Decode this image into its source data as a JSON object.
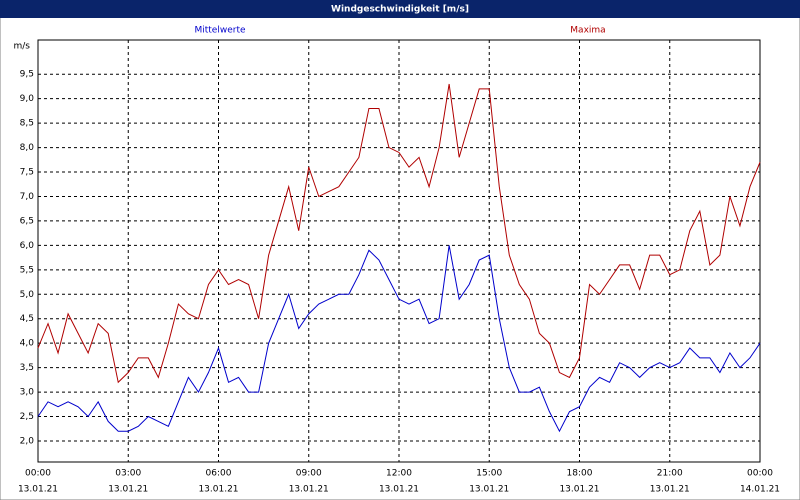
{
  "chart_data": {
    "type": "line",
    "title": "Windgeschwindigkeit [m/s]",
    "y_unit": "m/s",
    "x": [
      0,
      20,
      40,
      60,
      80,
      100,
      120,
      140,
      160,
      180,
      200,
      220,
      240,
      260,
      280,
      300,
      320,
      340,
      360,
      380,
      400,
      420,
      440,
      460,
      480,
      500,
      520,
      540,
      560,
      580,
      600,
      620,
      640,
      660,
      680,
      700,
      720,
      740,
      760,
      780,
      800,
      820,
      840,
      860,
      880,
      900,
      920,
      940,
      960,
      980,
      1000,
      1020,
      1040,
      1060,
      1080,
      1100,
      1120,
      1140,
      1160,
      1180,
      1200,
      1220,
      1240,
      1260,
      1280,
      1300,
      1320,
      1340,
      1360,
      1380,
      1400,
      1420,
      1440
    ],
    "series": [
      {
        "name": "Mittelwerte",
        "color": "#0000cc",
        "values": [
          2.5,
          2.8,
          2.7,
          2.8,
          2.7,
          2.5,
          2.8,
          2.4,
          2.2,
          2.2,
          2.3,
          2.5,
          2.4,
          2.3,
          2.8,
          3.3,
          3.0,
          3.4,
          3.9,
          3.2,
          3.3,
          3.0,
          3.0,
          4.0,
          4.5,
          5.0,
          4.3,
          4.6,
          4.8,
          4.9,
          5.0,
          5.0,
          5.4,
          5.9,
          5.7,
          5.3,
          4.9,
          4.8,
          4.9,
          4.4,
          4.5,
          6.0,
          4.9,
          5.2,
          5.7,
          5.8,
          4.5,
          3.5,
          3.0,
          3.0,
          3.1,
          2.6,
          2.2,
          2.6,
          2.7,
          3.1,
          3.3,
          3.2,
          3.6,
          3.5,
          3.3,
          3.5,
          3.6,
          3.5,
          3.6,
          3.9,
          3.7,
          3.7,
          3.4,
          3.8,
          3.5,
          3.7,
          4.0
        ]
      },
      {
        "name": "Maxima",
        "color": "#b00000",
        "values": [
          3.9,
          4.4,
          3.8,
          4.6,
          4.2,
          3.8,
          4.4,
          4.2,
          3.2,
          3.4,
          3.7,
          3.7,
          3.3,
          4.0,
          4.8,
          4.6,
          4.5,
          5.2,
          5.5,
          5.2,
          5.3,
          5.2,
          4.5,
          5.8,
          6.5,
          7.2,
          6.3,
          7.6,
          7.0,
          7.1,
          7.2,
          7.5,
          7.8,
          8.8,
          8.8,
          8.0,
          7.9,
          7.6,
          7.8,
          7.2,
          8.0,
          9.3,
          7.8,
          8.5,
          9.2,
          9.2,
          7.2,
          5.8,
          5.2,
          4.9,
          4.2,
          4.0,
          3.4,
          3.3,
          3.7,
          5.2,
          5.0,
          5.3,
          5.6,
          5.6,
          5.1,
          5.8,
          5.8,
          5.4,
          5.5,
          6.3,
          6.7,
          5.6,
          5.8,
          7.0,
          6.4,
          7.2,
          7.7
        ]
      }
    ],
    "xlim": [
      0,
      1440
    ],
    "xticks": [
      {
        "value": 0,
        "label": "00:00"
      },
      {
        "value": 180,
        "label": "03:00"
      },
      {
        "value": 360,
        "label": "06:00"
      },
      {
        "value": 540,
        "label": "09:00"
      },
      {
        "value": 720,
        "label": "12:00"
      },
      {
        "value": 900,
        "label": "15:00"
      },
      {
        "value": 1080,
        "label": "18:00"
      },
      {
        "value": 1260,
        "label": "21:00"
      },
      {
        "value": 1440,
        "label": "00:00"
      }
    ],
    "xtick_dates": [
      "13.01.21",
      "13.01.21",
      "13.01.21",
      "13.01.21",
      "13.01.21",
      "13.01.21",
      "13.01.21",
      "13.01.21",
      "14.01.21"
    ],
    "ylim": [
      1.57,
      10.2
    ],
    "yticks": [
      {
        "value": 2,
        "label": "2,0"
      },
      {
        "value": 2.5,
        "label": "2,5"
      },
      {
        "value": 3,
        "label": "3,0"
      },
      {
        "value": 3.5,
        "label": "3,5"
      },
      {
        "value": 4,
        "label": "4,0"
      },
      {
        "value": 4.5,
        "label": "4,5"
      },
      {
        "value": 5,
        "label": "5,0"
      },
      {
        "value": 5.5,
        "label": "5,5"
      },
      {
        "value": 6,
        "label": "6,0"
      },
      {
        "value": 6.5,
        "label": "6,5"
      },
      {
        "value": 7,
        "label": "7,0"
      },
      {
        "value": 7.5,
        "label": "7,5"
      },
      {
        "value": 8,
        "label": "8,0"
      },
      {
        "value": 8.5,
        "label": "8,5"
      },
      {
        "value": 9,
        "label": "9,0"
      },
      {
        "value": 9.5,
        "label": "9,5"
      }
    ],
    "grid": true
  }
}
